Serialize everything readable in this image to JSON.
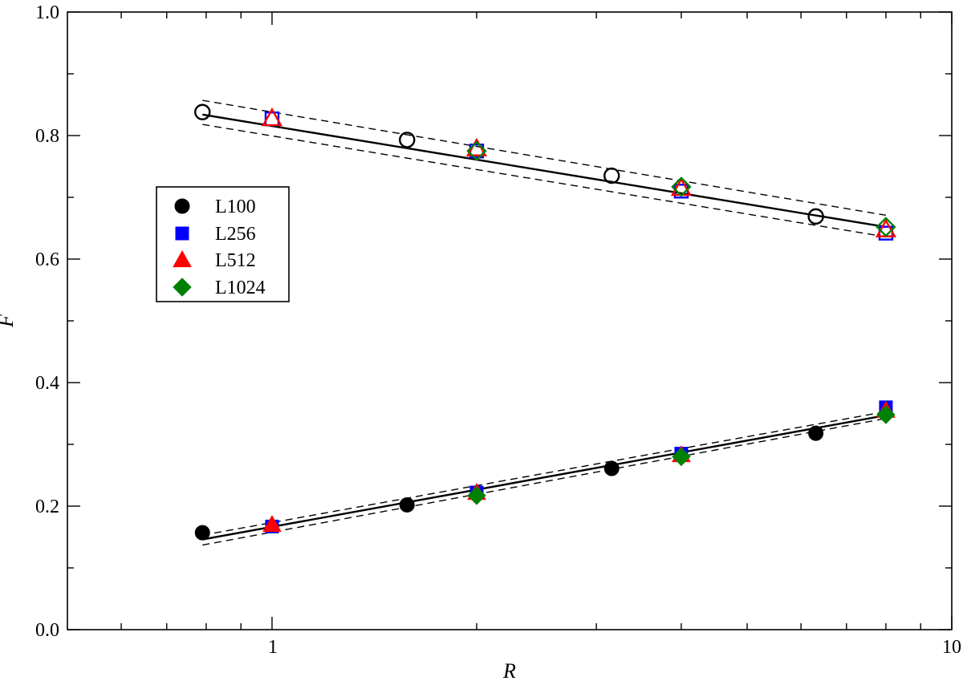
{
  "chart_data": {
    "type": "scatter",
    "xscale": "log",
    "xlim": [
      0.5,
      10
    ],
    "ylim": [
      0.0,
      1.0
    ],
    "xlabel": "R",
    "ylabel": "F",
    "xtick_labels": [
      "1",
      "10"
    ],
    "ytick_labels": [
      "0.0",
      "0.2",
      "0.4",
      "0.6",
      "0.8",
      "1.0"
    ],
    "grid": false,
    "legend_position": "upper-left",
    "series": [
      {
        "name": "L100",
        "marker": "circle",
        "color": "#000000",
        "filled_points": [
          [
            0.79,
            0.157
          ],
          [
            1.58,
            0.202
          ],
          [
            3.16,
            0.261
          ],
          [
            6.31,
            0.318
          ]
        ],
        "open_points": [
          [
            0.79,
            0.838
          ],
          [
            1.58,
            0.793
          ],
          [
            3.16,
            0.735
          ],
          [
            6.31,
            0.669
          ]
        ]
      },
      {
        "name": "L256",
        "marker": "square",
        "color": "#0000ff",
        "filled_points": [
          [
            1.0,
            0.167
          ],
          [
            2.0,
            0.222
          ],
          [
            4.0,
            0.285
          ],
          [
            8.0,
            0.36
          ]
        ],
        "open_points": [
          [
            1.0,
            0.827
          ],
          [
            2.0,
            0.775
          ],
          [
            4.0,
            0.71
          ],
          [
            8.0,
            0.642
          ]
        ]
      },
      {
        "name": "L512",
        "marker": "triangle",
        "color": "#ff0000",
        "filled_points": [
          [
            1.0,
            0.17
          ],
          [
            2.0,
            0.222
          ],
          [
            4.0,
            0.283
          ],
          [
            8.0,
            0.355
          ]
        ],
        "open_points": [
          [
            1.0,
            0.828
          ],
          [
            2.0,
            0.779
          ],
          [
            4.0,
            0.715
          ],
          [
            8.0,
            0.648
          ]
        ]
      },
      {
        "name": "L1024",
        "marker": "diamond",
        "color": "#008000",
        "filled_points": [
          [
            2.0,
            0.217
          ],
          [
            4.0,
            0.28
          ],
          [
            8.0,
            0.348
          ]
        ],
        "open_points": [
          [
            2.0,
            0.775
          ],
          [
            4.0,
            0.717
          ],
          [
            8.0,
            0.652
          ]
        ]
      }
    ],
    "fit_lines": [
      {
        "style": "solid",
        "points": [
          [
            0.79,
            0.146
          ],
          [
            8.0,
            0.347
          ]
        ]
      },
      {
        "style": "dashed",
        "points": [
          [
            0.79,
            0.153
          ],
          [
            8.0,
            0.353
          ]
        ]
      },
      {
        "style": "dashed",
        "points": [
          [
            0.79,
            0.137
          ],
          [
            8.0,
            0.342
          ]
        ]
      },
      {
        "style": "solid",
        "points": [
          [
            0.79,
            0.834
          ],
          [
            8.0,
            0.652
          ]
        ]
      },
      {
        "style": "dashed",
        "points": [
          [
            0.79,
            0.857
          ],
          [
            8.0,
            0.671
          ]
        ]
      },
      {
        "style": "dashed",
        "points": [
          [
            0.79,
            0.818
          ],
          [
            8.0,
            0.636
          ]
        ]
      }
    ]
  }
}
